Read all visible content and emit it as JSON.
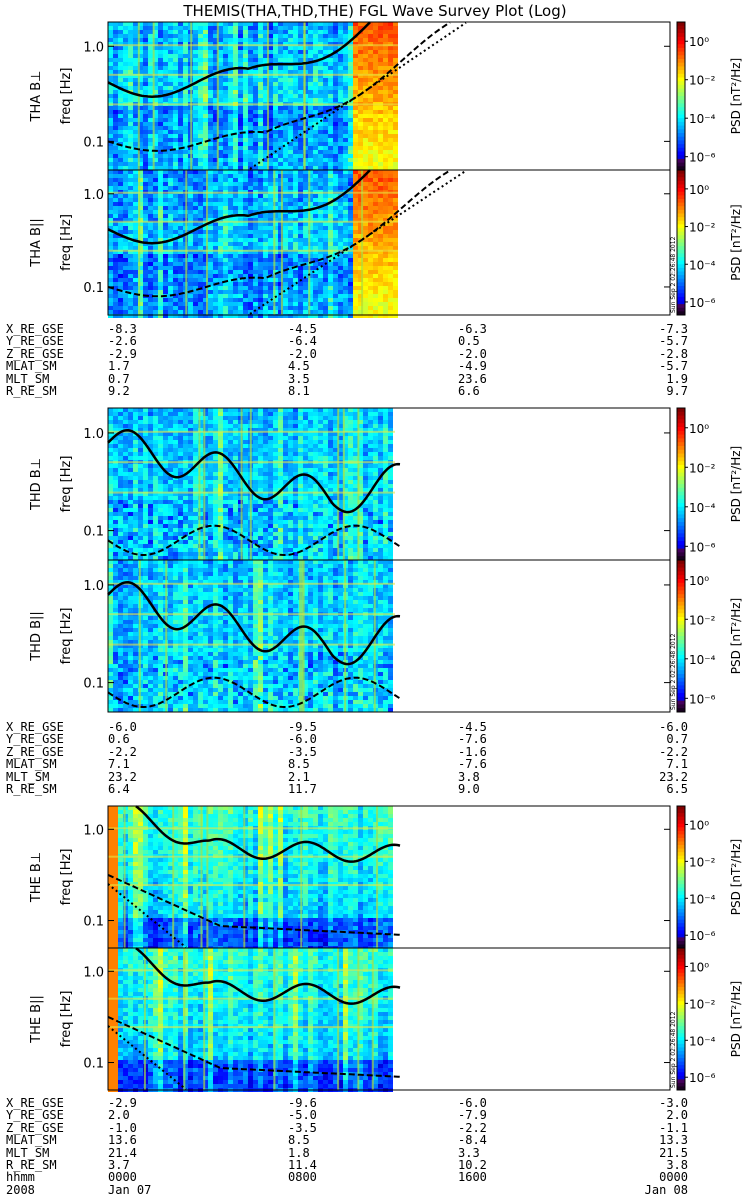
{
  "title": "THEMIS(THA,THD,THE) FGL Wave Survey Plot (Log)",
  "colorbar": {
    "label": "PSD [nT²/Hz]",
    "ticks": [
      "10⁰",
      "10⁻²",
      "10⁻⁴",
      "10⁻⁶"
    ]
  },
  "freq_axis": {
    "label": "freq [Hz]",
    "ticks": [
      "1.0",
      "0.1"
    ]
  },
  "stamp": "Sun Sep  2 02:26:48 2012",
  "chart_data": [
    {
      "type": "heatmap",
      "probe": "THA",
      "panels": [
        {
          "name": "THA B⊥",
          "ylabel": "THA B⊥",
          "yscale": "log",
          "ylim": [
            0.05,
            1.8
          ]
        },
        {
          "name": "THA B||",
          "ylabel": "THA B||",
          "yscale": "log",
          "ylim": [
            0.05,
            1.8
          ]
        }
      ],
      "orbit": {
        "labels": [
          "X_RE_GSE",
          "Y_RE_GSE",
          "Z_RE_GSE",
          "MLAT_SM",
          "MLT_SM",
          "R_RE_SM"
        ],
        "columns": [
          [
            "-8.3",
            "-2.6",
            "-2.9",
            "1.7",
            "0.7",
            "9.2"
          ],
          [
            "-4.5",
            "-6.4",
            "-2.0",
            "4.5",
            "3.5",
            "8.1"
          ],
          [
            "-6.3",
            "0.5",
            "-2.0",
            "-4.9",
            "23.6",
            "6.6"
          ],
          [
            "-7.3",
            "-5.7",
            "-2.8",
            "-5.7",
            "1.9",
            "9.7"
          ]
        ]
      }
    },
    {
      "type": "heatmap",
      "probe": "THD",
      "panels": [
        {
          "name": "THD B⊥",
          "ylabel": "THD B⊥",
          "yscale": "log",
          "ylim": [
            0.05,
            1.8
          ]
        },
        {
          "name": "THD B||",
          "ylabel": "THD B||",
          "yscale": "log",
          "ylim": [
            0.05,
            1.8
          ]
        }
      ],
      "orbit": {
        "labels": [
          "X_RE_GSE",
          "Y_RE_GSE",
          "Z_RE_GSE",
          "MLAT_SM",
          "MLT_SM",
          "R_RE_SM"
        ],
        "columns": [
          [
            "-6.0",
            "0.6",
            "-2.2",
            "7.1",
            "23.2",
            "6.4"
          ],
          [
            "-9.5",
            "-6.0",
            "-3.5",
            "8.5",
            "2.1",
            "11.7"
          ],
          [
            "-4.5",
            "-7.6",
            "-1.6",
            "-7.6",
            "3.8",
            "9.0"
          ],
          [
            "-6.0",
            "0.7",
            "-2.2",
            "7.1",
            "23.2",
            "6.5"
          ]
        ]
      }
    },
    {
      "type": "heatmap",
      "probe": "THE",
      "panels": [
        {
          "name": "THE B⊥",
          "ylabel": "THE B⊥",
          "yscale": "log",
          "ylim": [
            0.05,
            1.8
          ]
        },
        {
          "name": "THE B||",
          "ylabel": "THE B||",
          "yscale": "log",
          "ylim": [
            0.05,
            1.8
          ]
        }
      ],
      "orbit": {
        "labels": [
          "X_RE_GSE",
          "Y_RE_GSE",
          "Z_RE_GSE",
          "MLAT_SM",
          "MLT_SM",
          "R_RE_SM",
          "hhmm",
          "2008"
        ],
        "columns": [
          [
            "-2.9",
            "2.0",
            "-1.0",
            "13.6",
            "21.4",
            "3.7",
            "0000",
            "Jan 07"
          ],
          [
            "-9.6",
            "-5.0",
            "-3.5",
            "8.5",
            "1.8",
            "11.4",
            "0800",
            ""
          ],
          [
            "-6.0",
            "-7.9",
            "-2.2",
            "-8.4",
            "3.3",
            "10.2",
            "1600",
            ""
          ],
          [
            "-3.0",
            "2.0",
            "-1.1",
            "13.3",
            "21.5",
            "3.8",
            "0000",
            "Jan 08"
          ]
        ]
      }
    }
  ]
}
